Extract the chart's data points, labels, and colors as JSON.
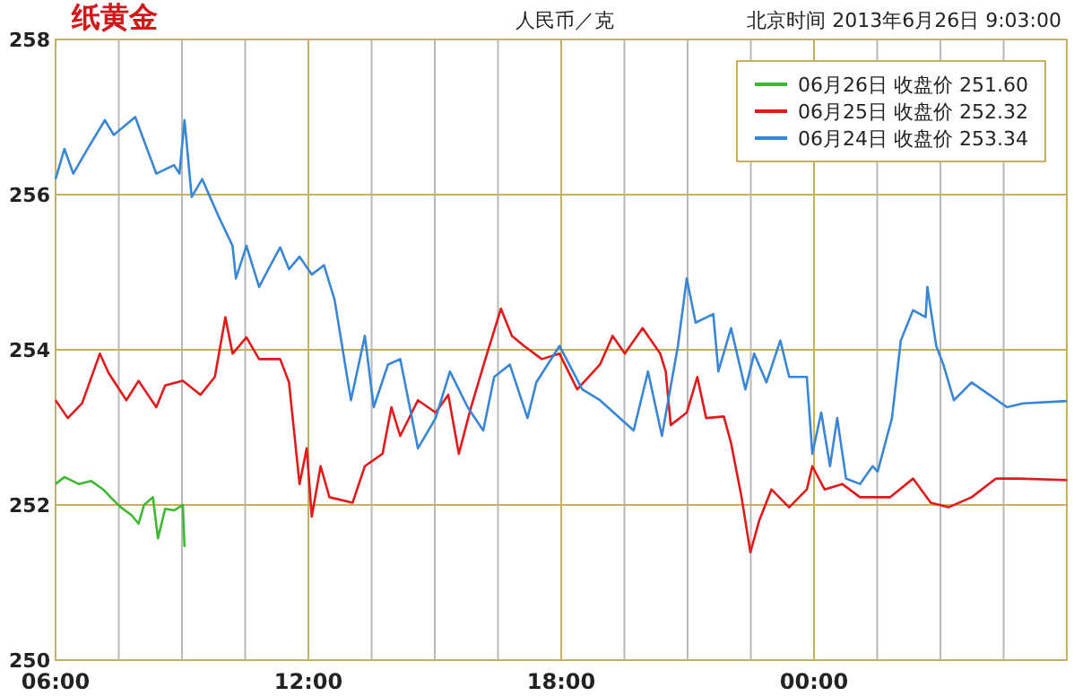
{
  "chart_data": {
    "type": "line",
    "title": "纸黄金",
    "ylabel": "人民币／克",
    "annotations": [
      "北京时间 2013年6月26日 9:03:00"
    ],
    "xlim": [
      6,
      30
    ],
    "ylim": [
      250,
      258
    ],
    "yticks": [
      250,
      252,
      254,
      256,
      258
    ],
    "xticks": [
      {
        "value": 6,
        "label": "06:00"
      },
      {
        "value": 7.5,
        "label": null
      },
      {
        "value": 9,
        "label": null
      },
      {
        "value": 10.5,
        "label": null
      },
      {
        "value": 12,
        "label": "12:00"
      },
      {
        "value": 13.5,
        "label": null
      },
      {
        "value": 15,
        "label": null
      },
      {
        "value": 16.5,
        "label": null
      },
      {
        "value": 18,
        "label": "18:00"
      },
      {
        "value": 19.5,
        "label": null
      },
      {
        "value": 21,
        "label": null
      },
      {
        "value": 22.5,
        "label": null
      },
      {
        "value": 24,
        "label": "00:00"
      },
      {
        "value": 25.5,
        "label": null
      },
      {
        "value": 27,
        "label": null
      },
      {
        "value": 28.5,
        "label": null
      }
    ],
    "grid": true,
    "legend": "top right",
    "marker": "none",
    "line_style": "solid",
    "series": [
      {
        "name": "06月26日 收盘价 251.60",
        "color": "#3cb832",
        "x": [
          6.0,
          6.21,
          6.55,
          6.84,
          7.13,
          7.34,
          7.55,
          7.8,
          7.97,
          8.1,
          8.31,
          8.43,
          8.6,
          8.81,
          9.02,
          9.06
        ],
        "values": [
          252.27,
          252.36,
          252.27,
          252.31,
          252.2,
          252.08,
          251.97,
          251.87,
          251.76,
          252.0,
          252.1,
          251.57,
          251.95,
          251.93,
          252.0,
          251.46
        ]
      },
      {
        "name": "06月25日 收盘价 252.32",
        "color": "#e01a1a",
        "x": [
          6.0,
          6.29,
          6.63,
          7.05,
          7.26,
          7.68,
          7.97,
          8.39,
          8.6,
          9.02,
          9.44,
          9.78,
          10.03,
          10.2,
          10.53,
          10.83,
          11.33,
          11.54,
          11.79,
          11.96,
          12.08,
          12.29,
          12.5,
          13.05,
          13.34,
          13.76,
          13.97,
          14.18,
          14.6,
          15.02,
          15.32,
          15.57,
          15.86,
          16.2,
          16.57,
          16.83,
          17.12,
          17.54,
          17.96,
          18.38,
          18.92,
          19.22,
          19.51,
          19.93,
          20.35,
          20.48,
          20.6,
          20.98,
          21.23,
          21.44,
          21.86,
          22.03,
          22.28,
          22.49,
          22.7,
          22.99,
          23.41,
          23.83,
          23.96,
          24.25,
          24.67,
          25.09,
          25.81,
          26.35,
          26.77,
          27.19,
          27.74,
          28.32,
          28.87,
          30.0
        ],
        "values": [
          253.35,
          253.12,
          253.31,
          253.95,
          253.7,
          253.35,
          253.6,
          253.26,
          253.54,
          253.6,
          253.42,
          253.65,
          254.42,
          253.95,
          254.16,
          253.88,
          253.88,
          253.58,
          252.27,
          252.73,
          251.85,
          252.5,
          252.1,
          252.03,
          252.5,
          252.66,
          253.26,
          252.89,
          253.35,
          253.19,
          253.42,
          252.66,
          253.26,
          253.88,
          254.53,
          254.18,
          254.05,
          253.88,
          253.95,
          253.49,
          253.81,
          254.18,
          253.95,
          254.28,
          253.95,
          253.72,
          253.03,
          253.19,
          253.65,
          253.12,
          253.14,
          252.8,
          252.1,
          251.39,
          251.8,
          252.2,
          251.97,
          252.2,
          252.5,
          252.2,
          252.27,
          252.1,
          252.1,
          252.34,
          252.03,
          251.97,
          252.1,
          252.34,
          252.34,
          252.32
        ]
      },
      {
        "name": "06月24日 收盘价 253.34",
        "color": "#3a86d6",
        "x": [
          6.0,
          6.21,
          6.42,
          6.76,
          7.17,
          7.38,
          7.89,
          8.39,
          8.81,
          8.94,
          9.06,
          9.23,
          9.48,
          9.86,
          10.2,
          10.28,
          10.53,
          10.83,
          11.12,
          11.33,
          11.54,
          11.79,
          12.08,
          12.37,
          12.62,
          13.01,
          13.34,
          13.55,
          13.89,
          14.18,
          14.6,
          15.02,
          15.36,
          15.78,
          16.15,
          16.41,
          16.78,
          17.2,
          17.41,
          17.96,
          18.5,
          18.92,
          19.72,
          20.06,
          20.39,
          20.77,
          20.98,
          21.19,
          21.61,
          21.73,
          22.03,
          22.37,
          22.58,
          22.87,
          23.2,
          23.41,
          23.83,
          23.96,
          24.17,
          24.38,
          24.55,
          24.76,
          25.09,
          25.39,
          25.51,
          25.85,
          26.06,
          26.35,
          26.65,
          26.69,
          26.9,
          27.07,
          27.32,
          27.74,
          28.16,
          28.58,
          28.96,
          30.0
        ],
        "values": [
          256.2,
          256.59,
          256.27,
          256.59,
          256.96,
          256.77,
          257.0,
          256.27,
          256.38,
          256.27,
          256.96,
          255.97,
          256.2,
          255.73,
          255.34,
          254.92,
          255.34,
          254.81,
          255.11,
          255.32,
          255.04,
          255.2,
          254.97,
          255.09,
          254.65,
          253.35,
          254.18,
          253.26,
          253.81,
          253.88,
          252.73,
          253.12,
          253.72,
          253.26,
          252.96,
          253.65,
          253.81,
          253.12,
          253.58,
          254.05,
          253.49,
          253.35,
          252.96,
          253.72,
          252.89,
          254.05,
          254.92,
          254.35,
          254.46,
          253.72,
          254.28,
          253.49,
          253.95,
          253.58,
          254.12,
          253.65,
          253.65,
          252.66,
          253.19,
          252.5,
          253.12,
          252.34,
          252.27,
          252.5,
          252.43,
          253.12,
          254.12,
          254.51,
          254.42,
          254.81,
          254.05,
          253.81,
          253.35,
          253.58,
          253.42,
          253.26,
          253.31,
          253.34
        ]
      }
    ]
  }
}
